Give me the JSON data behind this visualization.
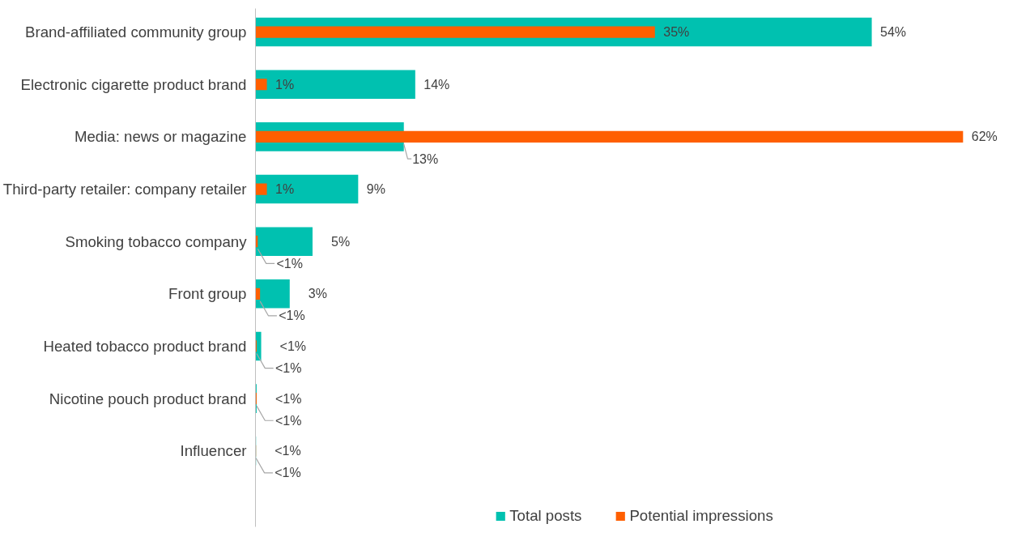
{
  "chart_data": {
    "type": "bar",
    "orientation": "horizontal",
    "categories": [
      "Brand-affiliated community group",
      "Electronic cigarette product brand",
      "Media: news or magazine",
      "Third-party retailer: company retailer",
      "Smoking tobacco company",
      "Front group",
      "Heated tobacco product brand",
      "Nicotine pouch product brand",
      "Influencer"
    ],
    "series": [
      {
        "name": "Total posts",
        "color": "#00c1b0",
        "values": [
          54,
          14,
          13,
          9,
          5,
          3,
          0.5,
          0.1,
          0.05
        ],
        "value_labels": [
          "54%",
          "14%",
          "13%",
          "9%",
          "5%",
          "3%",
          "<1%",
          "<1%",
          "<1%"
        ]
      },
      {
        "name": "Potential impressions",
        "color": "#ff5f00",
        "values": [
          35,
          1,
          62,
          1,
          0.2,
          0.4,
          0.1,
          0.1,
          0.05
        ],
        "value_labels": [
          "35%",
          "1%",
          "62%",
          "1%",
          "<1%",
          "<1%",
          "<1%",
          "<1%",
          "<1%"
        ]
      }
    ],
    "grid": false,
    "legend": "bottom"
  }
}
